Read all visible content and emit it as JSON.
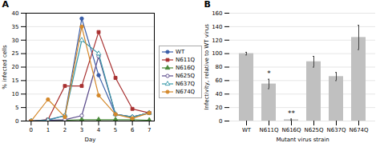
{
  "chart_data": [
    {
      "type": "line",
      "title": "A",
      "xlabel": "Day",
      "ylabel": "% infected cells",
      "x": [
        0,
        1,
        2,
        3,
        4,
        5,
        6,
        7
      ],
      "xlim": [
        -0.3,
        7.3
      ],
      "xticks": [
        0,
        1,
        2,
        3,
        4,
        5,
        6,
        7
      ],
      "ylim": [
        0,
        40
      ],
      "yticks": [
        0,
        5,
        10,
        15,
        20,
        25,
        30,
        35,
        40
      ],
      "grid": true,
      "legend": "right",
      "series": [
        {
          "name": "WT",
          "color": "#3a5ea8",
          "marker": "circle",
          "values": [
            0,
            0.5,
            2.0,
            38,
            17,
            2.5,
            1.5,
            3.0
          ]
        },
        {
          "name": "N611Q",
          "color": "#a83030",
          "marker": "square",
          "values": [
            0,
            0.5,
            13,
            13,
            33,
            16,
            4.5,
            3.0
          ]
        },
        {
          "name": "N616Q",
          "color": "#4a8a3a",
          "marker": "triangle",
          "values": [
            0,
            0.2,
            0.3,
            0.5,
            0.5,
            0.5,
            0.5,
            0.3
          ]
        },
        {
          "name": "N625Q",
          "color": "#5a4a8a",
          "marker": "circle-open",
          "values": [
            0,
            0.3,
            0.5,
            2.0,
            24,
            2.5,
            1.5,
            3.0
          ]
        },
        {
          "name": "N637Q",
          "color": "#3a9aaa",
          "marker": "triangle-open",
          "values": [
            0,
            0.3,
            2.0,
            30,
            25,
            2.5,
            1.5,
            3.0
          ]
        },
        {
          "name": "N674Q",
          "color": "#d4882a",
          "marker": "circle",
          "values": [
            0,
            8,
            1.5,
            35,
            9.5,
            2.5,
            1.0,
            3.0
          ]
        }
      ]
    },
    {
      "type": "bar",
      "title": "B",
      "xlabel": "Mutant virus strain",
      "ylabel": "Infectivity, relative to WT virus",
      "categories": [
        "WT",
        "N611Q",
        "N616Q",
        "N625Q",
        "N637Q",
        "N674Q"
      ],
      "values": [
        100,
        55,
        2,
        88,
        66,
        124
      ],
      "errors": [
        2,
        7,
        1,
        8,
        6,
        18
      ],
      "color": "#c0c0c0",
      "ylim": [
        0,
        160
      ],
      "yticks": [
        0,
        20,
        40,
        60,
        80,
        100,
        120,
        140,
        160
      ],
      "grid": true,
      "annotations": [
        {
          "category": "N611Q",
          "text": "*"
        },
        {
          "category": "N616Q",
          "text": "**"
        }
      ]
    }
  ]
}
